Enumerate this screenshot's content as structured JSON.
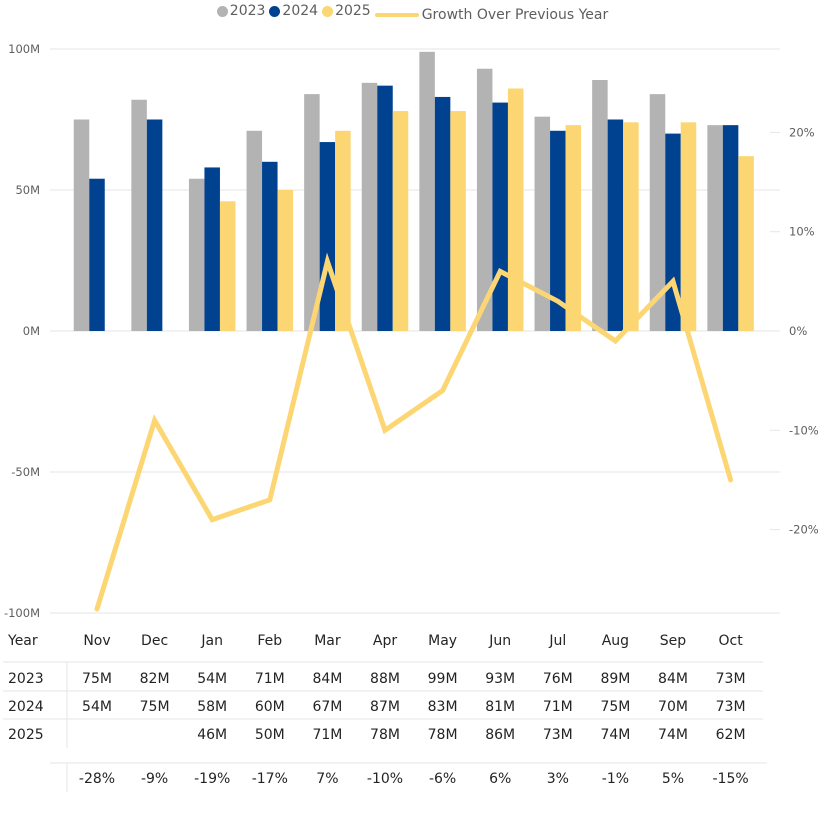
{
  "chart_data": {
    "type": "bar",
    "title": "",
    "legend_position": "top-center",
    "categories": [
      "Nov",
      "Dec",
      "Jan",
      "Feb",
      "Mar",
      "Apr",
      "May",
      "Jun",
      "Jul",
      "Aug",
      "Sep",
      "Oct"
    ],
    "series": [
      {
        "name": "2023",
        "type": "bar",
        "color": "#b3b3b3",
        "values": [
          75,
          82,
          54,
          71,
          84,
          88,
          99,
          93,
          76,
          89,
          84,
          73
        ]
      },
      {
        "name": "2024",
        "type": "bar",
        "color": "#00428f",
        "values": [
          54,
          75,
          58,
          60,
          67,
          87,
          83,
          81,
          71,
          75,
          70,
          73
        ]
      },
      {
        "name": "2025",
        "type": "bar",
        "color": "#fcd673",
        "values": [
          null,
          null,
          46,
          50,
          71,
          78,
          78,
          86,
          73,
          74,
          74,
          62
        ]
      },
      {
        "name": "Growth Over Previous Year",
        "type": "line",
        "axis": "right",
        "color": "#fcd673",
        "values": [
          -28,
          -9,
          -19,
          -17,
          7,
          -10,
          -6,
          6,
          3,
          -1,
          5,
          -15
        ]
      }
    ],
    "left_axis": {
      "unit": "M",
      "ylim": [
        -100,
        100
      ],
      "ticks": [
        100,
        50,
        0,
        -50,
        -100
      ],
      "tick_labels": [
        "100M",
        "50M",
        "0M",
        "-50M",
        "-100M"
      ]
    },
    "right_axis": {
      "unit": "%",
      "ylim": [
        -28.4,
        28.4
      ],
      "ticks": [
        20,
        10,
        0,
        -10,
        -20
      ],
      "tick_labels": [
        "20%",
        "10%",
        "0%",
        "-10%",
        "-20%"
      ]
    },
    "grid": true
  },
  "legend": {
    "items": [
      {
        "label": "2023",
        "color": "#b3b3b3",
        "shape": "dot"
      },
      {
        "label": "2024",
        "color": "#00428f",
        "shape": "dot"
      },
      {
        "label": "2025",
        "color": "#fcd673",
        "shape": "dot"
      },
      {
        "label": "Growth Over Previous Year",
        "color": "#fcd673",
        "shape": "line"
      }
    ]
  },
  "table": {
    "header_label": "Year",
    "months": [
      "Nov",
      "Dec",
      "Jan",
      "Feb",
      "Mar",
      "Apr",
      "May",
      "Jun",
      "Jul",
      "Aug",
      "Sep",
      "Oct"
    ],
    "rows": [
      {
        "label": "2023",
        "cells": [
          "75M",
          "82M",
          "54M",
          "71M",
          "84M",
          "88M",
          "99M",
          "93M",
          "76M",
          "89M",
          "84M",
          "73M"
        ]
      },
      {
        "label": "2024",
        "cells": [
          "54M",
          "75M",
          "58M",
          "60M",
          "67M",
          "87M",
          "83M",
          "81M",
          "71M",
          "75M",
          "70M",
          "73M"
        ]
      },
      {
        "label": "2025",
        "cells": [
          "",
          "",
          "46M",
          "50M",
          "71M",
          "78M",
          "78M",
          "86M",
          "73M",
          "74M",
          "74M",
          "62M"
        ]
      }
    ],
    "growth_row": [
      "-28%",
      "-9%",
      "-19%",
      "-17%",
      "7%",
      "-10%",
      "-6%",
      "6%",
      "3%",
      "-1%",
      "5%",
      "-15%"
    ]
  }
}
